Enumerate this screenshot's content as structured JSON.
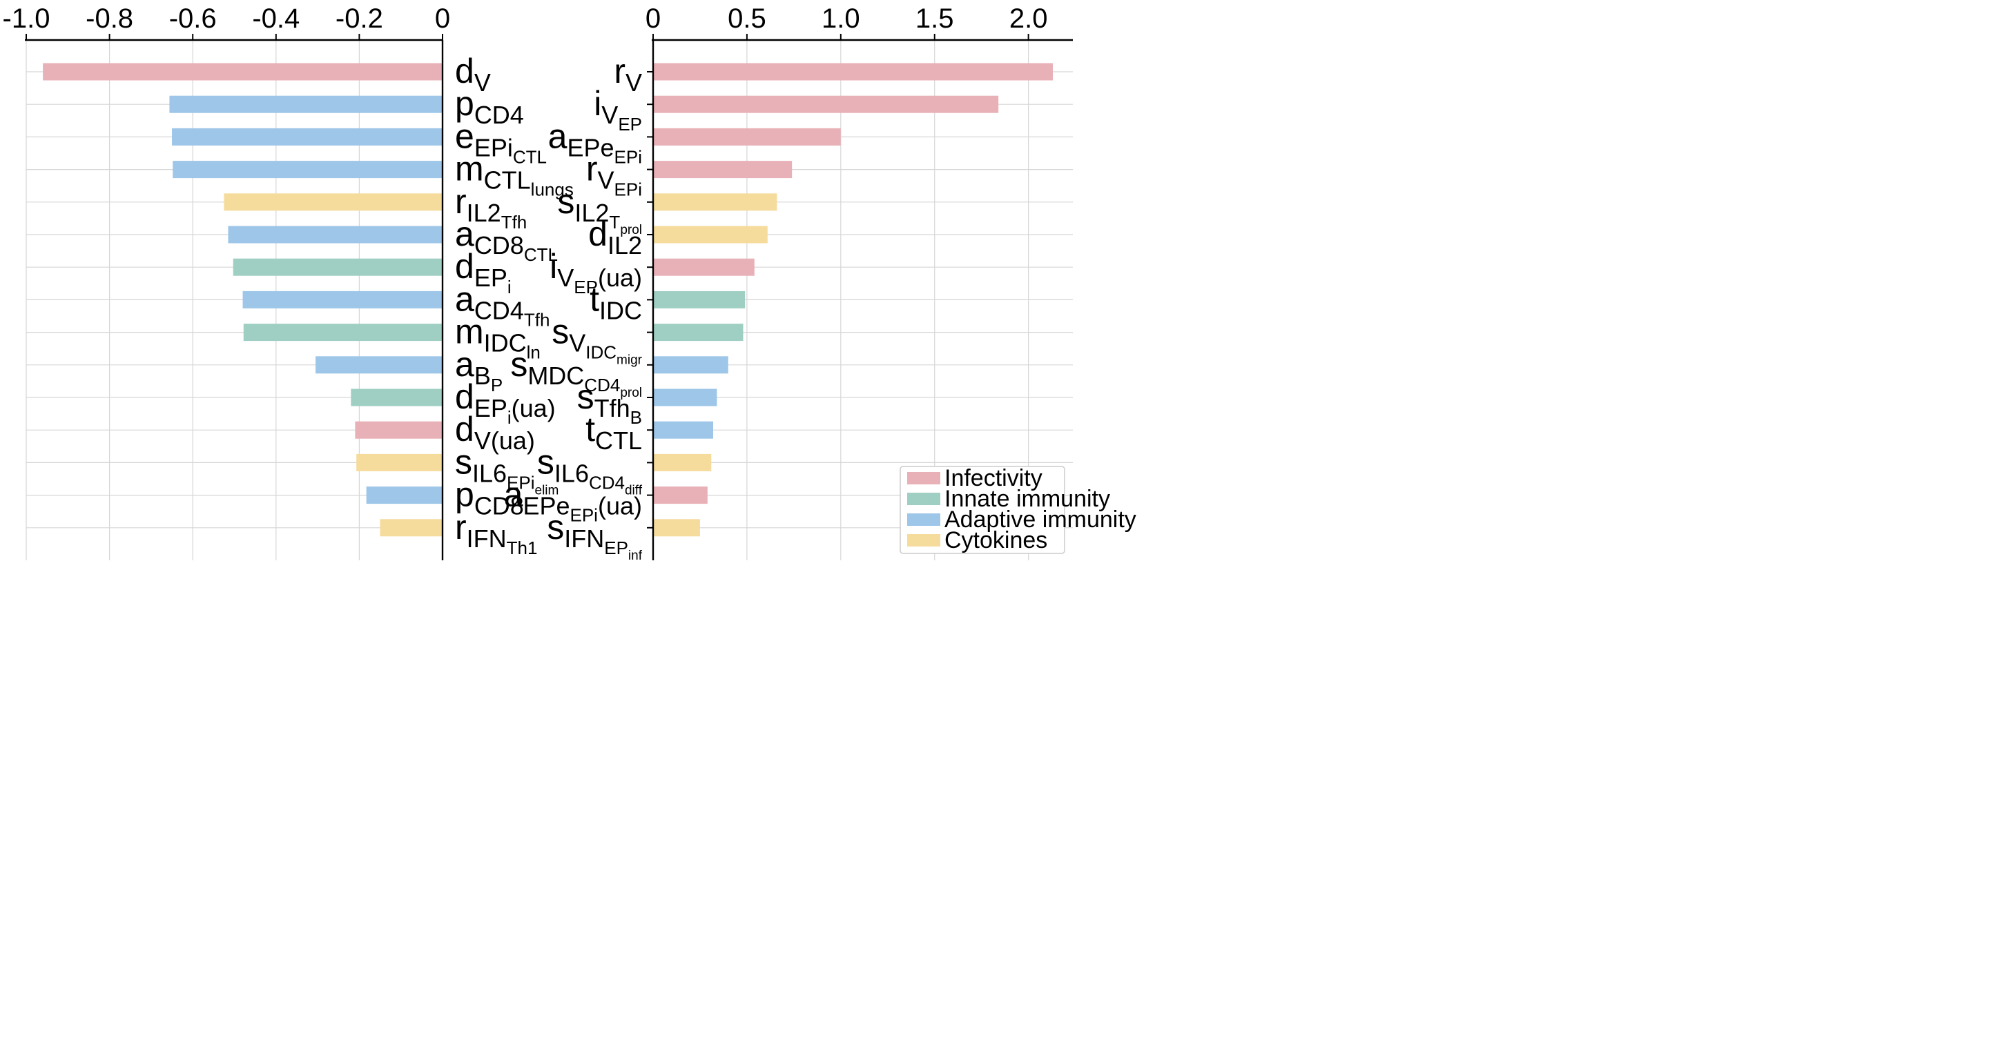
{
  "chart_data": [
    {
      "type": "bar",
      "orientation": "horizontal",
      "xlim": [
        -1.0,
        0.0
      ],
      "xticks": [
        -1.0,
        -0.8,
        -0.6,
        -0.4,
        -0.2,
        0
      ],
      "xtick_labels": [
        "-1.0",
        "-0.8",
        "-0.6",
        "-0.4",
        "-0.2",
        "0"
      ],
      "grid": true,
      "bars": [
        {
          "label": {
            "base": "d",
            "sub": "V"
          },
          "value": -0.96,
          "group": "infectivity"
        },
        {
          "label": {
            "base": "p",
            "sub": "CD4"
          },
          "value": -0.656,
          "group": "adaptive"
        },
        {
          "label": {
            "base": "e",
            "sub": "EPi",
            "subsub": "CTL"
          },
          "value": -0.65,
          "group": "adaptive"
        },
        {
          "label": {
            "base": "m",
            "sub": "CTL",
            "subsub": "lungs"
          },
          "value": -0.648,
          "group": "adaptive"
        },
        {
          "label": {
            "base": "r",
            "sub": "IL2",
            "subsub": "Tfh"
          },
          "value": -0.525,
          "group": "cytokines"
        },
        {
          "label": {
            "base": "a",
            "sub": "CD8",
            "subsub": "CTL"
          },
          "value": -0.515,
          "group": "adaptive"
        },
        {
          "label": {
            "base": "d",
            "sub": "EP",
            "subsub": "i"
          },
          "value": -0.503,
          "group": "innate"
        },
        {
          "label": {
            "base": "a",
            "sub": "CD4",
            "subsub": "Tfh"
          },
          "value": -0.48,
          "group": "adaptive"
        },
        {
          "label": {
            "base": "m",
            "sub": "IDC",
            "subsub": "ln"
          },
          "value": -0.478,
          "group": "innate"
        },
        {
          "label": {
            "base": "a",
            "sub": "B",
            "subsub": "P"
          },
          "value": -0.305,
          "group": "adaptive"
        },
        {
          "label": {
            "base": "d",
            "sub": "EP",
            "subsub": "i",
            "tail": "(ua)"
          },
          "value": -0.22,
          "group": "innate"
        },
        {
          "label": {
            "base": "d",
            "sub": "V(ua)"
          },
          "value": -0.21,
          "group": "infectivity"
        },
        {
          "label": {
            "base": "s",
            "sub": "IL6",
            "subsub": "EPi",
            "subsubsub": "elim"
          },
          "value": -0.207,
          "group": "cytokines"
        },
        {
          "label": {
            "base": "p",
            "sub": "CD8"
          },
          "value": -0.183,
          "group": "adaptive"
        },
        {
          "label": {
            "base": "r",
            "sub": "IFN",
            "subsub": "Th1"
          },
          "value": -0.15,
          "group": "cytokines"
        }
      ]
    },
    {
      "type": "bar",
      "orientation": "horizontal",
      "xlim": [
        0.0,
        2.2
      ],
      "xticks": [
        0,
        0.5,
        1.0,
        1.5,
        2.0
      ],
      "xtick_labels": [
        "0",
        "0.5",
        "1.0",
        "1.5",
        "2.0"
      ],
      "grid": true,
      "bars": [
        {
          "label": {
            "base": "r",
            "sub": "V"
          },
          "value": 2.13,
          "group": "infectivity"
        },
        {
          "label": {
            "base": "i",
            "sub": "V",
            "subsub": "EP"
          },
          "value": 1.84,
          "group": "infectivity"
        },
        {
          "label": {
            "base": "a",
            "sub": "EPe",
            "subsub": "EPi"
          },
          "value": 1.0,
          "group": "infectivity"
        },
        {
          "label": {
            "base": "r",
            "sub": "V",
            "subsub": "EPi"
          },
          "value": 0.74,
          "group": "infectivity"
        },
        {
          "label": {
            "base": "s",
            "sub": "IL2",
            "subsub": "T",
            "subsubsub": "prol"
          },
          "value": 0.66,
          "group": "cytokines"
        },
        {
          "label": {
            "base": "d",
            "sub": "IL2"
          },
          "value": 0.61,
          "group": "cytokines"
        },
        {
          "label": {
            "base": "i",
            "sub": "V",
            "subsub": "EP",
            "tail": "(ua)"
          },
          "value": 0.54,
          "group": "infectivity"
        },
        {
          "label": {
            "base": "t",
            "sub": "IDC"
          },
          "value": 0.49,
          "group": "innate"
        },
        {
          "label": {
            "base": "s",
            "sub": "V",
            "subsub": "IDC",
            "subsubsub": "migr"
          },
          "value": 0.48,
          "group": "innate"
        },
        {
          "label": {
            "base": "s",
            "sub": "MDC",
            "subsub": "CD4",
            "subsubsub": "prol"
          },
          "value": 0.4,
          "group": "adaptive"
        },
        {
          "label": {
            "base": "s",
            "sub": "Tfh",
            "subsub": "B"
          },
          "value": 0.34,
          "group": "adaptive"
        },
        {
          "label": {
            "base": "t",
            "sub": "CTL"
          },
          "value": 0.32,
          "group": "adaptive"
        },
        {
          "label": {
            "base": "s",
            "sub": "IL6",
            "subsub": "CD4",
            "subsubsub": "diff"
          },
          "value": 0.31,
          "group": "cytokines"
        },
        {
          "label": {
            "base": "a",
            "sub": "EPe",
            "subsub": "EPi",
            "tail": "(ua)"
          },
          "value": 0.29,
          "group": "infectivity"
        },
        {
          "label": {
            "base": "s",
            "sub": "IFN",
            "subsub": "EP",
            "subsubsub": "inf"
          },
          "value": 0.25,
          "group": "cytokines"
        }
      ]
    }
  ],
  "legend": {
    "placement": "bottom-right",
    "items": [
      {
        "key": "infectivity",
        "label": "Infectivity",
        "color": "#e8b1b7"
      },
      {
        "key": "innate",
        "label": "Innate immunity",
        "color": "#9fcfc3"
      },
      {
        "key": "adaptive",
        "label": "Adaptive immunity",
        "color": "#9dc6e8"
      },
      {
        "key": "cytokines",
        "label": "Cytokines",
        "color": "#f6dc9c"
      }
    ]
  },
  "colors": {
    "grid": "#d6d6d6",
    "axis": "#000000",
    "legend_border": "#cccccc"
  }
}
